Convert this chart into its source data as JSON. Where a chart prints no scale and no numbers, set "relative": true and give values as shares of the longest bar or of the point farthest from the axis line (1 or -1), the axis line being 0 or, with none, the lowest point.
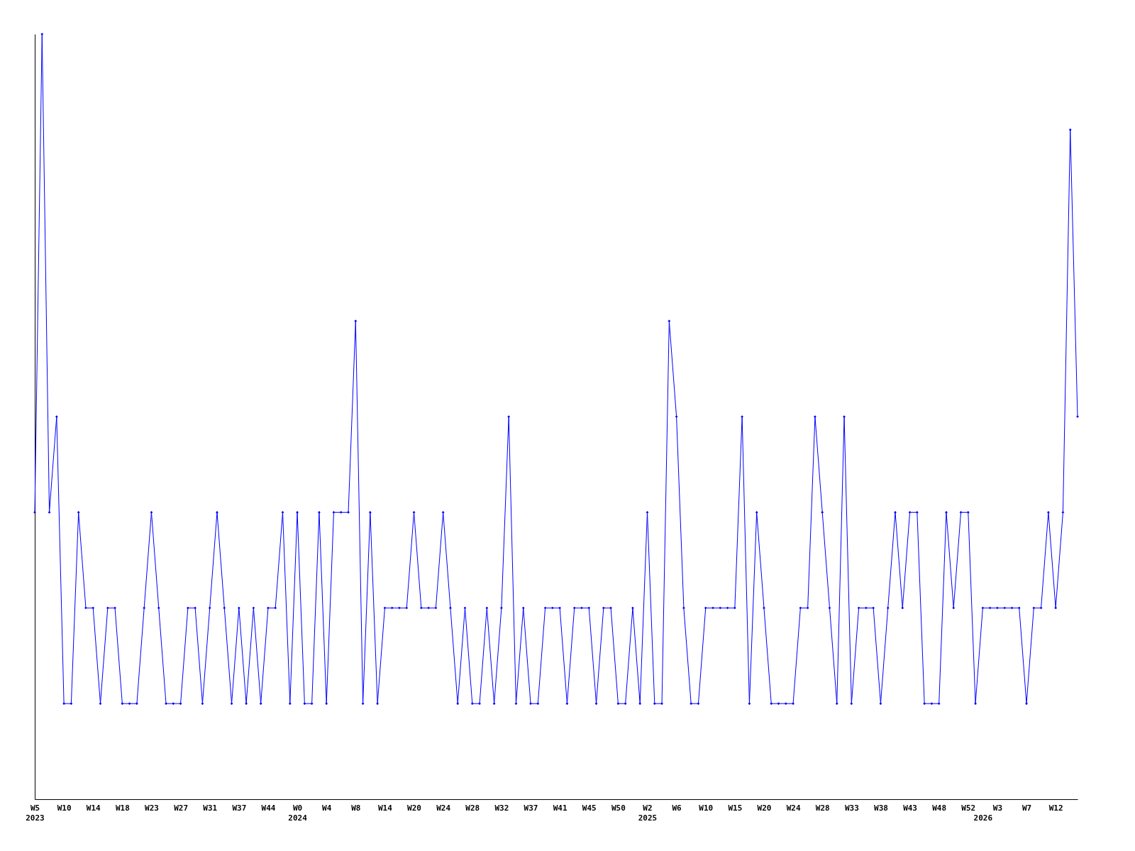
{
  "chart_data": {
    "type": "line",
    "relative": true,
    "color": "#0000ff",
    "marker": "diamond",
    "grid": false,
    "categories": [
      "W5\n2023",
      null,
      null,
      null,
      "W10",
      null,
      null,
      null,
      "W14",
      null,
      null,
      null,
      "W18",
      null,
      null,
      null,
      "W23",
      null,
      null,
      null,
      "W27",
      null,
      null,
      null,
      "W31",
      null,
      null,
      null,
      "W37",
      null,
      null,
      null,
      "W44",
      null,
      null,
      null,
      "W0\n2024",
      null,
      null,
      null,
      "W4",
      null,
      null,
      null,
      "W8",
      null,
      null,
      null,
      "W14",
      null,
      null,
      null,
      "W20",
      null,
      null,
      null,
      "W24",
      null,
      null,
      null,
      "W28",
      null,
      null,
      null,
      "W32",
      null,
      null,
      null,
      "W37",
      null,
      null,
      null,
      "W41",
      null,
      null,
      null,
      "W45",
      null,
      null,
      null,
      "W50",
      null,
      null,
      null,
      "W2\n2025",
      null,
      null,
      null,
      "W6",
      null,
      null,
      null,
      "W10",
      null,
      null,
      null,
      "W15",
      null,
      null,
      null,
      "W20",
      null,
      null,
      null,
      "W24",
      null,
      null,
      null,
      "W28",
      null,
      null,
      null,
      "W33",
      null,
      null,
      null,
      "W38",
      null,
      null,
      null,
      "W43",
      null,
      null,
      null,
      "W48",
      null,
      null,
      null,
      "W52",
      null,
      "\n2026",
      null,
      "W3",
      null,
      null,
      null,
      "W7",
      null,
      null,
      null,
      "W12",
      null,
      null,
      null
    ],
    "values": [
      0.375,
      1,
      0.375,
      0.5,
      0.125,
      0.125,
      0.375,
      0.25,
      0.25,
      0.125,
      0.25,
      0.25,
      0.125,
      0.125,
      0.125,
      0.25,
      0.375,
      0.25,
      0.125,
      0.125,
      0.125,
      0.25,
      0.25,
      0.125,
      0.25,
      0.375,
      0.25,
      0.125,
      0.25,
      0.125,
      0.25,
      0.125,
      0.25,
      0.25,
      0.375,
      0.125,
      0.375,
      0.125,
      0.125,
      0.375,
      0.125,
      0.375,
      0.375,
      0.375,
      0.625,
      0.125,
      0.375,
      0.125,
      0.25,
      0.25,
      0.25,
      0.25,
      0.375,
      0.25,
      0.25,
      0.25,
      0.375,
      0.25,
      0.125,
      0.25,
      0.125,
      0.125,
      0.25,
      0.125,
      0.25,
      0.5,
      0.125,
      0.25,
      0.125,
      0.125,
      0.25,
      0.25,
      0.25,
      0.125,
      0.25,
      0.25,
      0.25,
      0.125,
      0.25,
      0.25,
      0.125,
      0.125,
      0.25,
      0.125,
      0.375,
      0.125,
      0.125,
      0.625,
      0.5,
      0.25,
      0.125,
      0.125,
      0.25,
      0.25,
      0.25,
      0.25,
      0.25,
      0.5,
      0.125,
      0.375,
      0.25,
      0.125,
      0.125,
      0.125,
      0.125,
      0.25,
      0.25,
      0.5,
      0.375,
      0.25,
      0.125,
      0.5,
      0.125,
      0.25,
      0.25,
      0.25,
      0.125,
      0.25,
      0.375,
      0.25,
      0.375,
      0.375,
      0.125,
      0.125,
      0.125,
      0.375,
      0.25,
      0.375,
      0.375,
      0.125,
      0.25,
      0.25,
      0.25,
      0.25,
      0.25,
      0.25,
      0.125,
      0.25,
      0.25,
      0.375,
      0.25,
      0.375,
      0.875,
      0.5
    ]
  }
}
